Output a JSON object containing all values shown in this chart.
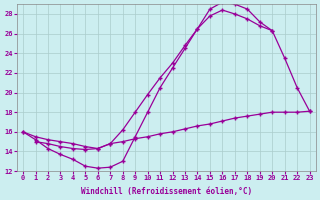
{
  "bg_color": "#cceef0",
  "grid_color": "#aacccc",
  "line_color": "#990099",
  "xlabel": "Windchill (Refroidissement éolien,°C)",
  "xlim": [
    -0.5,
    23.5
  ],
  "ylim": [
    12,
    29
  ],
  "yticks": [
    12,
    14,
    16,
    18,
    20,
    22,
    24,
    26,
    28
  ],
  "xticks": [
    0,
    1,
    2,
    3,
    4,
    5,
    6,
    7,
    8,
    9,
    10,
    11,
    12,
    13,
    14,
    15,
    16,
    17,
    18,
    19,
    20,
    21,
    22,
    23
  ],
  "curve1_x": [
    0,
    1,
    2,
    3,
    4,
    5,
    6,
    7,
    8,
    9,
    10,
    11,
    12,
    13,
    14,
    15,
    16,
    17,
    18,
    19,
    20,
    21,
    22,
    23
  ],
  "curve1_y": [
    16.0,
    15.2,
    14.3,
    13.7,
    13.2,
    12.5,
    12.3,
    12.4,
    13.0,
    15.5,
    18.0,
    20.5,
    22.5,
    24.5,
    26.5,
    28.5,
    29.2,
    29.0,
    28.5,
    27.2,
    26.3,
    23.5,
    20.5,
    18.1
  ],
  "curve2_x": [
    0,
    1,
    2,
    3,
    4,
    5,
    6,
    7,
    8,
    9,
    10,
    11,
    12,
    13,
    14,
    15,
    16,
    17,
    18,
    19,
    20
  ],
  "curve2_y": [
    16.0,
    15.5,
    15.2,
    15.0,
    14.8,
    14.5,
    14.3,
    14.8,
    16.2,
    18.0,
    19.8,
    21.5,
    23.0,
    24.8,
    26.5,
    27.8,
    28.4,
    28.0,
    27.5,
    26.8,
    26.3
  ],
  "curve3_x": [
    1,
    2,
    3,
    4,
    5,
    6,
    7,
    8,
    9,
    10,
    11,
    12,
    13,
    14,
    15,
    16,
    17,
    18,
    19,
    20,
    21,
    22,
    23
  ],
  "curve3_y": [
    15.0,
    14.8,
    14.5,
    14.3,
    14.2,
    14.3,
    14.8,
    15.0,
    15.3,
    15.5,
    15.8,
    16.0,
    16.3,
    16.6,
    16.8,
    17.1,
    17.4,
    17.6,
    17.8,
    18.0,
    18.0,
    18.0,
    18.1
  ]
}
